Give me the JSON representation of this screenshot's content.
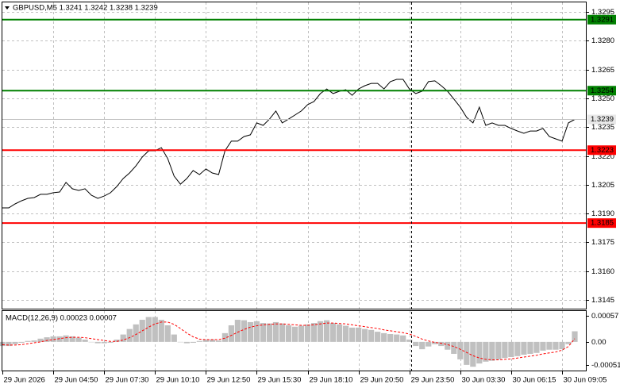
{
  "chart_data": [
    {
      "type": "line",
      "title": "GBPUSD,M5  1.3241 1.3242 1.3238 1.3239",
      "categories": [
        "29 Jun 2026",
        null,
        null,
        null,
        null,
        null,
        null,
        null,
        "29 Jun 04:50",
        null,
        null,
        null,
        null,
        null,
        null,
        null,
        "29 Jun 07:30",
        null,
        null,
        null,
        null,
        null,
        null,
        null,
        "29 Jun 10:10",
        null,
        null,
        null,
        null,
        null,
        null,
        null,
        "29 Jun 12:50",
        null,
        null,
        null,
        null,
        null,
        null,
        null,
        "29 Jun 15:30",
        null,
        null,
        null,
        null,
        null,
        null,
        null,
        "29 Jun 18:10",
        null,
        null,
        null,
        null,
        null,
        null,
        null,
        "29 Jun 20:50",
        null,
        null,
        null,
        null,
        null,
        null,
        null,
        "29 Jun 23:50",
        null,
        null,
        null,
        null,
        null,
        null,
        null,
        "30 Jun 03:30",
        null,
        null,
        null,
        null,
        null,
        null,
        null,
        "30 Jun 06:15",
        null,
        null,
        null,
        null,
        null,
        null,
        null,
        "30 Jun 09:05",
        null,
        null
      ],
      "series": [
        {
          "color": "#000000",
          "values": [
            1.31929,
            1.31929,
            1.3195,
            1.31966,
            1.31979,
            1.31983,
            1.32,
            1.32,
            1.32008,
            1.32012,
            1.32062,
            1.32029,
            1.3202,
            1.32029,
            1.31995,
            1.31979,
            1.31991,
            1.32008,
            1.32041,
            1.32082,
            1.32111,
            1.32148,
            1.32194,
            1.32227,
            1.32227,
            1.32243,
            1.32186,
            1.32095,
            1.32053,
            1.32082,
            1.32124,
            1.32103,
            1.32132,
            1.32111,
            1.32103,
            1.32227,
            1.32277,
            1.32277,
            1.32301,
            1.3231,
            1.32372,
            1.32359,
            1.32392,
            1.32434,
            1.32372,
            1.32392,
            1.32413,
            1.32434,
            1.32467,
            1.32483,
            1.32525,
            1.32549,
            1.32525,
            1.32537,
            1.32545,
            1.32516,
            1.32549,
            1.32566,
            1.32578,
            1.32578,
            1.32549,
            1.32587,
            1.32599,
            1.32599,
            1.32549,
            1.32525,
            1.32537,
            1.32587,
            1.32591,
            1.32566,
            1.32537,
            1.32496,
            1.32454,
            1.32401,
            1.32372,
            1.32454,
            1.32359,
            1.32372,
            1.32359,
            1.32359,
            1.32343,
            1.3233,
            1.32318,
            1.3233,
            1.3233,
            1.32343,
            1.32301,
            1.32289,
            1.32277,
            1.32372,
            1.3239
          ]
        }
      ],
      "levels": [
        {
          "value": 1.3291,
          "color": "#008000"
        },
        {
          "value": 1.3254,
          "color": "#008000"
        },
        {
          "value": 1.3239,
          "color": "#c0c0c0"
        },
        {
          "value": 1.3223,
          "color": "#ff0000"
        },
        {
          "value": 1.3185,
          "color": "#ff0000"
        }
      ],
      "ylim": [
        1.314,
        1.33
      ],
      "yticks": [
        1.3295,
        {
          "value": 1.328,
          "label": "1.3280"
        },
        1.3265,
        {
          "value": 1.325,
          "label": "1.3250"
        },
        1.3235,
        {
          "value": 1.322,
          "label": "1.3220"
        },
        1.3205,
        {
          "value": 1.319,
          "label": "1.3190"
        },
        1.3175,
        {
          "value": 1.316,
          "label": "1.3160"
        },
        1.3145
      ],
      "grid": true
    },
    {
      "type": "macd",
      "title": "MACD(12,26,9) 0.00023 0.00007",
      "series": [
        {
          "color": "#c0c0c0",
          "values": [
            -9e-05,
            -9e-05,
            -5e-05,
            -2e-05,
            2e-05,
            3e-05,
            7e-05,
            0.0001,
            0.00012,
            0.00012,
            0.00014,
            0.00012,
            9e-05,
            5e-05,
            0,
            -3e-05,
            -3e-05,
            -2e-05,
            5e-05,
            0.00016,
            0.00028,
            0.00038,
            0.00048,
            0.00054,
            0.00054,
            0.00048,
            0.00036,
            0.00016,
            0,
            -3e-05,
            -2e-05,
            2e-05,
            5e-05,
            5e-05,
            3e-05,
            0.00019,
            0.00036,
            0.00048,
            0.00047,
            0.00043,
            0.00045,
            0.00041,
            0.0004,
            0.00043,
            0.0004,
            0.00036,
            0.00033,
            0.00035,
            0.00038,
            0.00041,
            0.00045,
            0.00047,
            0.00041,
            0.00038,
            0.00035,
            0.00031,
            0.00031,
            0.00028,
            0.00026,
            0.00022,
            0.00019,
            0.00017,
            0.00016,
            0.00014,
            5e-05,
            -9e-05,
            -0.00016,
            -0.0001,
            -5e-05,
            -9e-05,
            -0.00017,
            -0.00026,
            -0.00038,
            -0.0005,
            -0.00054,
            -0.00047,
            -0.00043,
            -0.00041,
            -0.00038,
            -0.00035,
            -0.00033,
            -0.00031,
            -0.00028,
            -0.00026,
            -0.00024,
            -0.00019,
            -0.00017,
            -0.00017,
            -0.00016,
            -5e-05,
            0.00023
          ]
        },
        {
          "color": "#ff0000",
          "values": [
            -6e-05,
            -7e-05,
            -7e-05,
            -6e-05,
            -4e-05,
            -2e-05,
            0,
            3e-05,
            5e-05,
            7e-05,
            9e-05,
            0.0001,
            0.0001,
            9e-05,
            7e-05,
            5e-05,
            3e-05,
            1e-05,
            1e-05,
            4e-05,
            9e-05,
            0.00016,
            0.00024,
            0.00032,
            0.00039,
            0.00043,
            0.00043,
            0.00038,
            0.00029,
            0.00019,
            0.00011,
            6e-05,
            5e-05,
            5e-05,
            5e-05,
            8e-05,
            0.00014,
            0.00021,
            0.00027,
            0.00032,
            0.00035,
            0.00037,
            0.00038,
            0.00039,
            0.00039,
            0.00038,
            0.00037,
            0.00036,
            0.00036,
            0.00037,
            0.00039,
            0.00041,
            0.00041,
            0.0004,
            0.00039,
            0.00037,
            0.00035,
            0.00033,
            0.00031,
            0.00029,
            0.00026,
            0.00024,
            0.00022,
            0.0002,
            0.00017,
            0.00012,
            6e-05,
            2e-05,
            -1e-05,
            -3e-05,
            -6e-05,
            -0.0001,
            -0.00016,
            -0.00023,
            -0.0003,
            -0.00035,
            -0.00038,
            -0.00039,
            -0.00039,
            -0.00038,
            -0.00037,
            -0.00035,
            -0.00033,
            -0.00031,
            -0.00029,
            -0.00026,
            -0.00024,
            -0.00022,
            -0.00018,
            -0.0001,
            7e-05
          ]
        }
      ],
      "ylim": [
        -0.00064,
        0.00067
      ],
      "yticks": [
        0.00057,
        {
          "value": 0,
          "label": "0.00"
        },
        -0.00051
      ]
    }
  ]
}
